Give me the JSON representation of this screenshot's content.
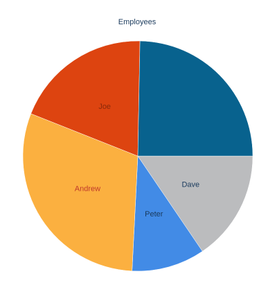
{
  "chart_data": {
    "type": "pie",
    "title": "Employees",
    "slices": [
      {
        "label": "Dave",
        "value": 15.5,
        "color": "#bbbcbe",
        "label_color": "#1a3a5c"
      },
      {
        "label": "Peter",
        "value": 10.3,
        "color": "#428be6",
        "label_color": "#1a3a5c"
      },
      {
        "label": "Andrew",
        "value": 30.2,
        "color": "#fbb040",
        "label_color": "#c0392b"
      },
      {
        "label": "Joe",
        "value": 19.3,
        "color": "#dd4410",
        "label_color": "#8a2a0a"
      },
      {
        "label": "",
        "value": 24.7,
        "color": "#08628e",
        "label_color": "#08628e"
      }
    ],
    "start_angle_deg": 0,
    "direction": "clockwise"
  }
}
